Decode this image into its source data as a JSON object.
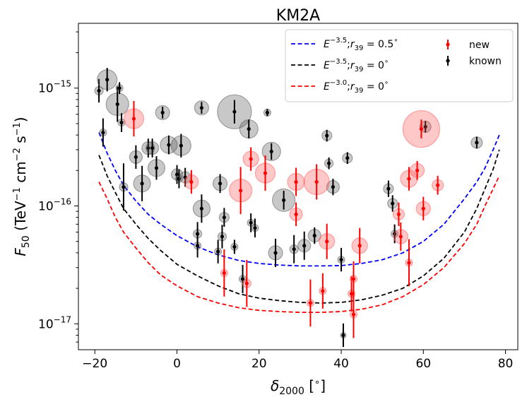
{
  "chart_data": {
    "type": "scatter",
    "title": "KM2A",
    "xlabel": "δ2000 [°]",
    "ylabel": "F50 (TeV−1 cm−2 s−1)",
    "xlim": [
      -24,
      83
    ],
    "ylim_log10": [
      -17.22,
      -14.45
    ],
    "x_ticks": [
      -20,
      0,
      20,
      40,
      60,
      80
    ],
    "x_tick_labels": [
      "−20",
      "0",
      "20",
      "40",
      "60",
      "80"
    ],
    "y_ticks": [
      1e-17,
      1e-16,
      1e-15
    ],
    "y_tick_labels": [
      {
        "base": "10",
        "exp": "−17"
      },
      {
        "base": "10",
        "exp": "−16"
      },
      {
        "base": "10",
        "exp": "−15"
      }
    ],
    "legend": {
      "placement": "top-right",
      "curves": [
        {
          "name": "sens_blue",
          "label_base": "E",
          "label_exp": "−3.5",
          "label_rest": ";r",
          "label_sub": "39",
          "label_eq": " = 0.5",
          "label_deg": "∘",
          "color": "#0000ff"
        },
        {
          "name": "sens_black",
          "label_base": "E",
          "label_exp": "−3.5",
          "label_rest": ";r",
          "label_sub": "39",
          "label_eq": " = 0",
          "label_deg": "∘",
          "color": "#000000"
        },
        {
          "name": "sens_red",
          "label_base": "E",
          "label_exp": "−3.0",
          "label_rest": ";r",
          "label_sub": "39",
          "label_eq": " = 0",
          "label_deg": "∘",
          "color": "#ff0000"
        }
      ],
      "points": [
        {
          "label": "new",
          "color": "#ff0000"
        },
        {
          "label": "known",
          "color": "#000000"
        }
      ]
    },
    "curves": [
      {
        "name": "E^-3.5; r39=0.5°",
        "color": "#0000ff",
        "x": [
          -19,
          -17,
          -15,
          -13,
          -10,
          -7,
          -4,
          0,
          5,
          10,
          15,
          20,
          25,
          30,
          35,
          40,
          45,
          50,
          55,
          60,
          65,
          70,
          73,
          75,
          77,
          78.5
        ],
        "y": [
          4.2e-16,
          2.8e-16,
          2e-16,
          1.5e-16,
          1.1e-16,
          8.5e-17,
          7e-17,
          5.6e-17,
          4.5e-17,
          3.85e-17,
          3.45e-17,
          3.25e-17,
          3.15e-17,
          3.1e-17,
          3.1e-17,
          3.12e-17,
          3.25e-17,
          3.5e-17,
          4e-17,
          5e-17,
          7e-17,
          1.15e-16,
          1.6e-16,
          2.1e-16,
          3e-16,
          4e-16
        ]
      },
      {
        "name": "E^-3.5; r39=0°",
        "color": "#000000",
        "x": [
          -19,
          -17,
          -15,
          -13,
          -10,
          -7,
          -4,
          0,
          5,
          10,
          15,
          20,
          25,
          30,
          35,
          40,
          45,
          50,
          55,
          60,
          65,
          70,
          73,
          75,
          77,
          78.5
        ],
        "y": [
          2.7e-16,
          1.8e-16,
          1.3e-16,
          9.5e-17,
          7e-17,
          5.3e-17,
          4.2e-17,
          3.2e-17,
          2.55e-17,
          2.1e-17,
          1.8e-17,
          1.65e-17,
          1.57e-17,
          1.52e-17,
          1.5e-17,
          1.52e-17,
          1.6e-17,
          1.75e-17,
          2e-17,
          2.55e-17,
          3.6e-17,
          6e-17,
          9.5e-17,
          1.4e-16,
          2.05e-16,
          3e-16
        ]
      },
      {
        "name": "E^-3.0; r39=0°",
        "color": "#ff0000",
        "x": [
          -19,
          -17,
          -15,
          -13,
          -10,
          -7,
          -4,
          0,
          5,
          10,
          15,
          20,
          25,
          30,
          35,
          40,
          45,
          50,
          55,
          60,
          65,
          70,
          73,
          75,
          77,
          78.5
        ],
        "y": [
          1.6e-16,
          1.15e-16,
          8e-17,
          6e-17,
          4.4e-17,
          3.3e-17,
          2.6e-17,
          2.1e-17,
          1.7e-17,
          1.5e-17,
          1.37e-17,
          1.3e-17,
          1.27e-17,
          1.25e-17,
          1.25e-17,
          1.27e-17,
          1.33e-17,
          1.45e-17,
          1.7e-17,
          2.15e-17,
          3e-17,
          4.8e-17,
          7e-17,
          1e-16,
          1.4e-16,
          1.8e-16
        ]
      }
    ],
    "new_sources": [
      {
        "x": -10.5,
        "y": 5.5e-16,
        "size": 1.4,
        "err": 0.15
      },
      {
        "x": 3.5,
        "y": 1.6e-16,
        "size": 1.0,
        "err": 0.1
      },
      {
        "x": 11.5,
        "y": 2.7e-17,
        "size": 0.5,
        "err": 0.2
      },
      {
        "x": 15.5,
        "y": 1.35e-16,
        "size": 1.6,
        "err": 0.2
      },
      {
        "x": 17,
        "y": 2.2e-17,
        "size": 0.6,
        "err": 0.2
      },
      {
        "x": 18,
        "y": 2.5e-16,
        "size": 1.1,
        "err": 0.1
      },
      {
        "x": 21.5,
        "y": 1.9e-16,
        "size": 1.4,
        "err": 0.15
      },
      {
        "x": 29,
        "y": 1.6e-16,
        "size": 1.2,
        "err": 0.12
      },
      {
        "x": 29,
        "y": 8.5e-17,
        "size": 0.9,
        "err": 0.1
      },
      {
        "x": 32.5,
        "y": 1.5e-17,
        "size": 0.5,
        "err": 0.2
      },
      {
        "x": 34,
        "y": 1.6e-16,
        "size": 1.8,
        "err": 0.15
      },
      {
        "x": 35.5,
        "y": 1.9e-17,
        "size": 0.5,
        "err": 0.15
      },
      {
        "x": 36.5,
        "y": 5e-17,
        "size": 1.1,
        "err": 0.15
      },
      {
        "x": 42.5,
        "y": 1.8e-17,
        "size": 0.5,
        "err": 0.15
      },
      {
        "x": 43,
        "y": 2.4e-17,
        "size": 0.5,
        "err": 0.15
      },
      {
        "x": 43,
        "y": 1.2e-17,
        "size": 0.5,
        "err": 0.2
      },
      {
        "x": 44.5,
        "y": 4.6e-17,
        "size": 1.1,
        "err": 0.15
      },
      {
        "x": 54,
        "y": 8.5e-17,
        "size": 0.8,
        "err": 0.1
      },
      {
        "x": 54.5,
        "y": 5.5e-17,
        "size": 1.0,
        "err": 0.12
      },
      {
        "x": 56.5,
        "y": 1.7e-16,
        "size": 1.2,
        "err": 0.1
      },
      {
        "x": 56.5,
        "y": 3.3e-17,
        "size": 0.5,
        "err": 0.2
      },
      {
        "x": 58.5,
        "y": 2e-16,
        "size": 1.0,
        "err": 0.08
      },
      {
        "x": 59.5,
        "y": 4.5e-16,
        "size": 2.6,
        "err": 0.08
      },
      {
        "x": 60,
        "y": 9.5e-17,
        "size": 1.0,
        "err": 0.1
      },
      {
        "x": 63.5,
        "y": 1.5e-16,
        "size": 0.8,
        "err": 0.08
      }
    ],
    "known_sources": [
      {
        "x": -19,
        "y": 9.5e-16,
        "size": 0.6,
        "err": 0.1
      },
      {
        "x": -18,
        "y": 4.2e-16,
        "size": 0.5,
        "err": 0.12
      },
      {
        "x": -17,
        "y": 1.18e-15,
        "size": 1.4,
        "err": 0.1
      },
      {
        "x": -14.5,
        "y": 7.3e-16,
        "size": 1.6,
        "err": 0.15
      },
      {
        "x": -14,
        "y": 1e-15,
        "size": 0.5,
        "err": 0.05
      },
      {
        "x": -13.5,
        "y": 5.1e-16,
        "size": 0.5,
        "err": 0.08
      },
      {
        "x": -13,
        "y": 1.45e-16,
        "size": 0.6,
        "err": 0.2
      },
      {
        "x": -10,
        "y": 2.6e-16,
        "size": 0.9,
        "err": 0.1
      },
      {
        "x": -8.5,
        "y": 1.55e-16,
        "size": 1.2,
        "err": 0.15
      },
      {
        "x": -7,
        "y": 3.1e-16,
        "size": 0.9,
        "err": 0.08
      },
      {
        "x": -6,
        "y": 3.1e-16,
        "size": 0.9,
        "err": 0.08
      },
      {
        "x": -5,
        "y": 2.1e-16,
        "size": 1.2,
        "err": 0.1
      },
      {
        "x": -3.5,
        "y": 6.2e-16,
        "size": 1.0,
        "err": 0.05
      },
      {
        "x": -2,
        "y": 3.3e-16,
        "size": 1.2,
        "err": 0.08
      },
      {
        "x": 0,
        "y": 1.85e-16,
        "size": 0.8,
        "err": 0.08
      },
      {
        "x": 0.5,
        "y": 1.7e-16,
        "size": 0.5,
        "err": 0.08
      },
      {
        "x": 1,
        "y": 3.25e-16,
        "size": 1.4,
        "err": 0.1
      },
      {
        "x": 2,
        "y": 1.75e-16,
        "size": 0.8,
        "err": 0.08
      },
      {
        "x": 5,
        "y": 4.6e-17,
        "size": 0.5,
        "err": 0.1
      },
      {
        "x": 5,
        "y": 5.8e-17,
        "size": 0.6,
        "err": 0.1
      },
      {
        "x": 6,
        "y": 6.8e-16,
        "size": 1.0,
        "err": 0.05
      },
      {
        "x": 6,
        "y": 9.5e-17,
        "size": 1.2,
        "err": 0.12
      },
      {
        "x": 10,
        "y": 4.1e-17,
        "size": 0.5,
        "err": 0.1
      },
      {
        "x": 10.5,
        "y": 1.55e-16,
        "size": 1.0,
        "err": 0.08
      },
      {
        "x": 11,
        "y": 5.5e-17,
        "size": 0.6,
        "err": 0.1
      },
      {
        "x": 11.5,
        "y": 8e-17,
        "size": 0.7,
        "err": 0.08
      },
      {
        "x": 14,
        "y": 6.3e-16,
        "size": 2.4,
        "err": 0.1
      },
      {
        "x": 14,
        "y": 4.5e-17,
        "size": 0.5,
        "err": 0.06
      },
      {
        "x": 16,
        "y": 2.4e-17,
        "size": 0.5,
        "err": 0.12
      },
      {
        "x": 17.5,
        "y": 4.5e-16,
        "size": 1.3,
        "err": 0.08
      },
      {
        "x": 18,
        "y": 7.2e-17,
        "size": 0.5,
        "err": 0.08
      },
      {
        "x": 19,
        "y": 6.5e-17,
        "size": 0.5,
        "err": 0.08
      },
      {
        "x": 22,
        "y": 6.2e-16,
        "size": 0.5,
        "err": 0.03
      },
      {
        "x": 23,
        "y": 2.9e-16,
        "size": 1.3,
        "err": 0.07
      },
      {
        "x": 24,
        "y": 4e-17,
        "size": 1.0,
        "err": 0.12
      },
      {
        "x": 26,
        "y": 1.12e-16,
        "size": 1.6,
        "err": 0.08
      },
      {
        "x": 28.5,
        "y": 4.3e-17,
        "size": 0.6,
        "err": 0.12
      },
      {
        "x": 31,
        "y": 4.6e-17,
        "size": 0.9,
        "err": 0.12
      },
      {
        "x": 33.5,
        "y": 5.6e-17,
        "size": 0.9,
        "err": 0.07
      },
      {
        "x": 36.5,
        "y": 3.95e-16,
        "size": 0.7,
        "err": 0.05
      },
      {
        "x": 37,
        "y": 2.3e-16,
        "size": 0.6,
        "err": 0.05
      },
      {
        "x": 38,
        "y": 1.45e-16,
        "size": 0.9,
        "err": 0.07
      },
      {
        "x": 40,
        "y": 3.5e-17,
        "size": 0.5,
        "err": 0.1
      },
      {
        "x": 40.5,
        "y": 8e-18,
        "size": 0.4,
        "err": 0.1
      },
      {
        "x": 41.5,
        "y": 2.55e-16,
        "size": 0.7,
        "err": 0.05
      },
      {
        "x": 51.5,
        "y": 1.4e-16,
        "size": 0.7,
        "err": 0.07
      },
      {
        "x": 52.5,
        "y": 1.05e-16,
        "size": 0.7,
        "err": 0.07
      },
      {
        "x": 53,
        "y": 5.8e-17,
        "size": 0.5,
        "err": 0.08
      },
      {
        "x": 60.5,
        "y": 4.7e-16,
        "size": 0.8,
        "err": 0.05
      },
      {
        "x": 73,
        "y": 3.45e-16,
        "size": 0.8,
        "err": 0.05
      }
    ]
  }
}
